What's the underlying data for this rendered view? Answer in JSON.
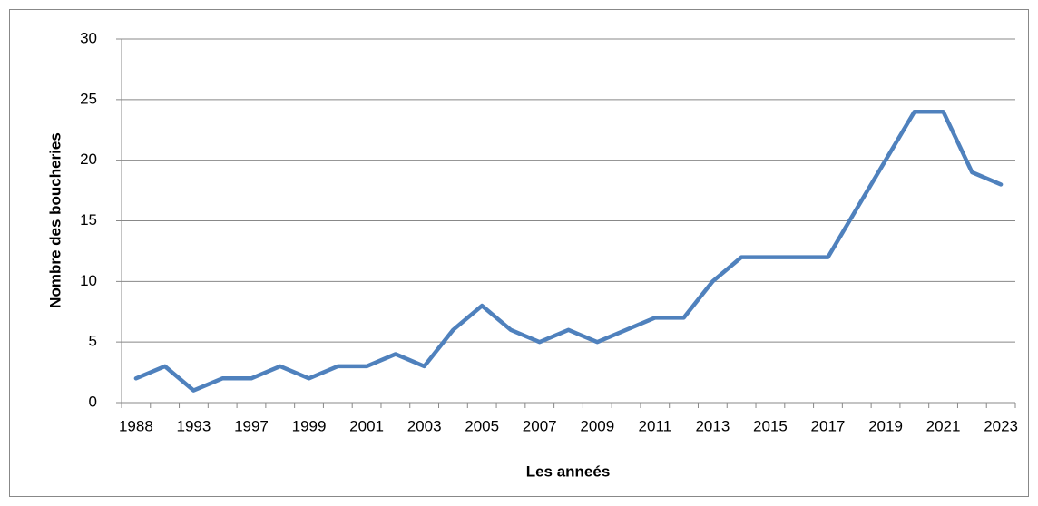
{
  "chart_data": {
    "type": "line",
    "x_label": "Les anneés",
    "y_label": "Nombre des boucheries",
    "categories": [
      "1988",
      null,
      "1993",
      null,
      "1997",
      null,
      "1999",
      null,
      "2001",
      null,
      "2003",
      null,
      "2005",
      null,
      "2007",
      null,
      "2009",
      null,
      "2011",
      null,
      "2013",
      null,
      "2015",
      null,
      "2017",
      null,
      "2019",
      null,
      "2021",
      null,
      "2023"
    ],
    "series": [
      {
        "name": "Nombre des boucheries",
        "color": "#4f81bd",
        "values": [
          2,
          3,
          1,
          2,
          2,
          3,
          2,
          3,
          3,
          4,
          3,
          6,
          8,
          6,
          5,
          6,
          5,
          6,
          7,
          7,
          10,
          12,
          12,
          12,
          12,
          16,
          20,
          24,
          24,
          19,
          18
        ]
      }
    ],
    "ylim": [
      0,
      30
    ],
    "yticks": [
      0,
      5,
      10,
      15,
      20,
      25,
      30
    ],
    "grid": true
  }
}
